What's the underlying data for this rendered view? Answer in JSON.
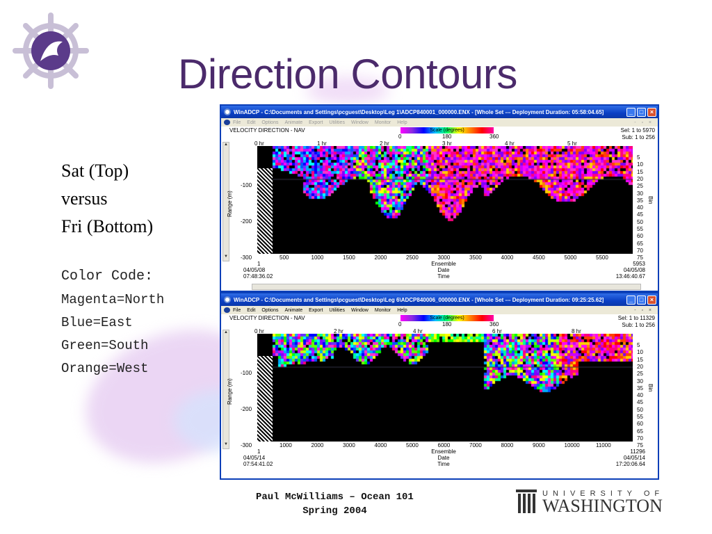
{
  "slide": {
    "title": "Direction Contours",
    "left_lines": [
      "Sat (Top)",
      "versus",
      "Fri (Bottom)"
    ],
    "color_code_heading": "Color Code:",
    "color_code_lines": [
      "Magenta=North",
      "Blue=East",
      "Green=South",
      "Orange=West"
    ],
    "footer_line1": "Paul McWilliams – Ocean  101",
    "footer_line2": "Spring 2004",
    "uw_univ": "UNIVERSITY OF",
    "uw_wash": "WASHINGTON"
  },
  "colors": {
    "title": "#4b2a6b",
    "titlebar": "#0a3fc4",
    "north": "#ff00ff",
    "east": "#0000ff",
    "south": "#00ff00",
    "west": "#ff8000"
  },
  "windows": [
    {
      "title": "WinADCP - C:\\Documents and Settings\\pcguest\\Desktop\\Leg 1\\ADCP840001_000000.ENX - [Whole Set --- Deployment Duration: 05:58:04.65]",
      "menu": [
        "File",
        "Edit",
        "Options",
        "Animate",
        "Export",
        "Utilities",
        "Window",
        "Monitor",
        "Help"
      ],
      "plot_title": "VELOCITY DIRECTION - NAV",
      "scale_label": "Scale (degrees)",
      "scale_ticks": [
        "0",
        "180",
        "360"
      ],
      "sel": "Sel: 1 to 5970",
      "sub": "Sub: 1 to 256",
      "hours": [
        "0 hr",
        "1 hr",
        "2 hr",
        "3 hr",
        "4 hr",
        "5 hr"
      ],
      "range_ticks": [
        "-100",
        "-200",
        "-300"
      ],
      "range_title": "Range (m)",
      "bins": [
        "5",
        "10",
        "15",
        "20",
        "25",
        "30",
        "35",
        "40",
        "45",
        "50",
        "55",
        "60",
        "65",
        "70",
        "75"
      ],
      "bin_title": "Bin",
      "ensembles": [
        "500",
        "1000",
        "1500",
        "2000",
        "2500",
        "3000",
        "3500",
        "4000",
        "4500",
        "5000",
        "5500"
      ],
      "ens_start": "1",
      "ens_end": "5953",
      "ens_label": "Ensemble",
      "date_start": "04/05/08",
      "date_end": "04/05/08",
      "date_label": "Date",
      "time_start": "07:48:36.02",
      "time_end": "13:46:40.67",
      "time_label": "Time"
    },
    {
      "title": "WinADCP - C:\\Documents and Settings\\pcguest\\Desktop\\Leg 6\\ADCP840006_000000.ENX - [Whole Set --- Deployment Duration: 09:25:25.62]",
      "menu": [
        "File",
        "Edit",
        "Options",
        "Animate",
        "Export",
        "Utilities",
        "Window",
        "Monitor",
        "Help"
      ],
      "plot_title": "VELOCITY DIRECTION - NAV",
      "scale_label": "Scale (degrees)",
      "scale_ticks": [
        "0",
        "180",
        "360"
      ],
      "sel": "Sel: 1 to 11329",
      "sub": "Sub: 1 to 256",
      "hours": [
        "0 hr",
        "2 hr",
        "4 hr",
        "6 hr",
        "8 hr"
      ],
      "range_ticks": [
        "-100",
        "-200",
        "-300"
      ],
      "range_title": "Range (m)",
      "bins": [
        "5",
        "10",
        "15",
        "20",
        "25",
        "30",
        "35",
        "40",
        "45",
        "50",
        "55",
        "60",
        "65",
        "70",
        "75"
      ],
      "bin_title": "Bin",
      "ensembles": [
        "1000",
        "2000",
        "3000",
        "4000",
        "5000",
        "6000",
        "7000",
        "8000",
        "9000",
        "10000",
        "11000"
      ],
      "ens_start": "1",
      "ens_end": "11296",
      "ens_label": "Ensemble",
      "date_start": "04/05/14",
      "date_end": "04/05/14",
      "date_label": "Date",
      "time_start": "07:54:41.02",
      "time_end": "17:20:06.64",
      "time_label": "Time"
    }
  ]
}
